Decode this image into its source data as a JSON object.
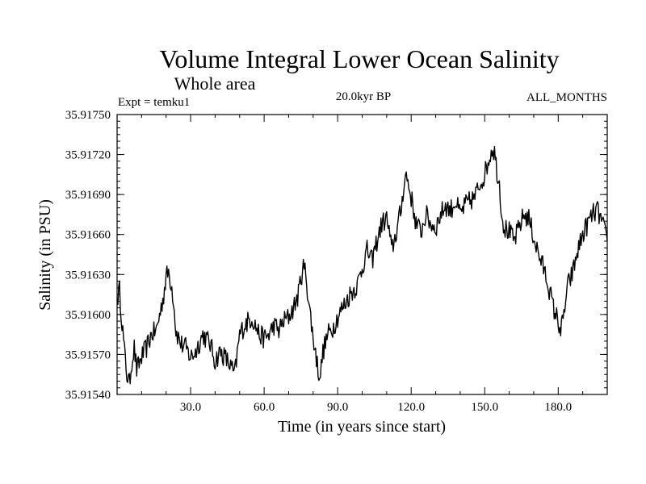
{
  "chart_data": {
    "type": "line",
    "title": "Volume Integral Lower Ocean Salinity",
    "subtitle": "Whole area",
    "experiment_label": "Expt = temku1",
    "period_label": "20.0kyr BP",
    "months_label": "ALL_MONTHS",
    "xlabel": "Time (in years since start)",
    "ylabel": "Salinity (in PSU)",
    "xlim": [
      0,
      200
    ],
    "ylim": [
      35.9154,
      35.9175
    ],
    "x_ticks": [
      30,
      60,
      90,
      120,
      150,
      180
    ],
    "x_tick_labels": [
      "30.0",
      "60.0",
      "90.0",
      "120.0",
      "150.0",
      "180.0"
    ],
    "y_ticks": [
      35.9154,
      35.9157,
      35.916,
      35.9163,
      35.9166,
      35.9169,
      35.9172,
      35.9175
    ],
    "y_tick_labels": [
      "35.91540",
      "35.91570",
      "35.91600",
      "35.91630",
      "35.91660",
      "35.91690",
      "35.91720",
      "35.91750"
    ],
    "grid": false,
    "series": [
      {
        "name": "Salinity",
        "x": [
          0,
          1,
          2,
          3,
          4,
          5,
          6,
          7,
          8,
          10,
          12,
          14,
          16,
          18,
          19,
          20,
          21,
          22,
          23,
          24,
          26,
          28,
          30,
          32,
          35,
          38,
          40,
          42,
          44,
          46,
          48,
          50,
          52,
          55,
          58,
          60,
          62,
          64,
          66,
          68,
          70,
          72,
          74,
          75,
          76,
          77,
          78,
          79,
          80,
          81,
          82,
          83,
          84,
          86,
          88,
          90,
          92,
          95,
          98,
          100,
          102,
          104,
          106,
          108,
          110,
          111,
          112,
          114,
          116,
          117,
          118,
          120,
          122,
          124,
          126,
          128,
          130,
          132,
          134,
          136,
          138,
          140,
          142,
          144,
          146,
          148,
          150,
          151,
          152,
          153,
          154,
          155,
          156,
          157,
          158,
          160,
          162,
          164,
          166,
          168,
          170,
          172,
          174,
          176,
          178,
          180,
          181,
          182,
          183,
          184,
          186,
          188,
          190,
          192,
          194,
          196,
          198,
          200
        ],
        "y": [
          35.91612,
          35.91618,
          35.91595,
          35.91572,
          35.91555,
          35.91548,
          35.91565,
          35.91575,
          35.91558,
          35.91568,
          35.91575,
          35.91585,
          35.91588,
          35.91605,
          35.91615,
          35.91628,
          35.91632,
          35.91624,
          35.91612,
          35.91588,
          35.91578,
          35.91575,
          35.91568,
          35.91572,
          35.91585,
          35.91578,
          35.91565,
          35.91572,
          35.91568,
          35.91562,
          35.91555,
          35.91585,
          35.91592,
          35.91598,
          35.91585,
          35.91582,
          35.91585,
          35.91592,
          35.91588,
          35.91595,
          35.91598,
          35.91605,
          35.91615,
          35.91628,
          35.91635,
          35.91632,
          35.91612,
          35.91598,
          35.91582,
          35.91572,
          35.91558,
          35.91555,
          35.91572,
          35.91585,
          35.9159,
          35.91598,
          35.91605,
          35.91615,
          35.91622,
          35.91635,
          35.91648,
          35.9164,
          35.91655,
          35.91668,
          35.91672,
          35.91662,
          35.91648,
          35.91662,
          35.9168,
          35.91698,
          35.91705,
          35.91688,
          35.91668,
          35.91662,
          35.91675,
          35.91668,
          35.91665,
          35.91675,
          35.91682,
          35.91678,
          35.91685,
          35.91675,
          35.91682,
          35.91685,
          35.91688,
          35.91698,
          35.91705,
          35.91712,
          35.91718,
          35.91725,
          35.91722,
          35.91708,
          35.91698,
          35.91675,
          35.91665,
          35.91662,
          35.91655,
          35.91665,
          35.91675,
          35.91672,
          35.91658,
          35.91645,
          35.91635,
          35.91622,
          35.91605,
          35.91595,
          35.91588,
          35.91595,
          35.9161,
          35.91622,
          35.91632,
          35.91648,
          35.9166,
          35.91668,
          35.91675,
          35.91678,
          35.91668,
          35.91655
        ]
      }
    ]
  }
}
